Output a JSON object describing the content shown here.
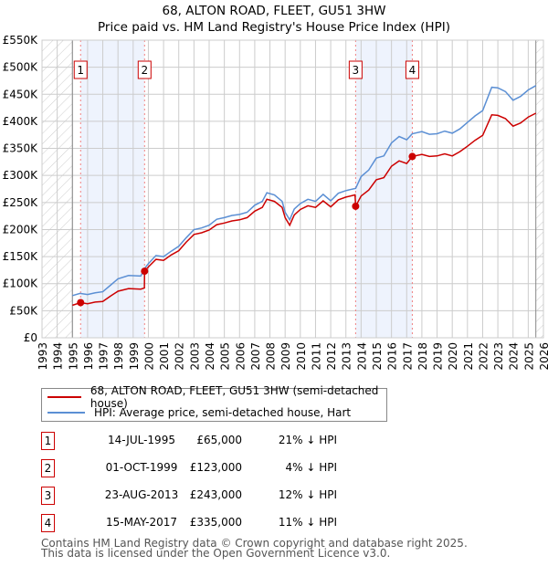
{
  "chart_data": {
    "type": "line",
    "title": "68, ALTON ROAD, FLEET, GU51 3HW",
    "subtitle": "Price paid vs. HM Land Registry's House Price Index (HPI)",
    "xlabel": "",
    "ylabel": "",
    "xlim": [
      1993,
      2026
    ],
    "ylim": [
      0,
      550000
    ],
    "grid": true,
    "x_ticks": [
      "1993",
      "1994",
      "1995",
      "1996",
      "1997",
      "1998",
      "1999",
      "2000",
      "2001",
      "2002",
      "2003",
      "2004",
      "2005",
      "2006",
      "2007",
      "2008",
      "2009",
      "2010",
      "2011",
      "2012",
      "2013",
      "2014",
      "2015",
      "2016",
      "2017",
      "2018",
      "2019",
      "2020",
      "2021",
      "2022",
      "2023",
      "2024",
      "2025",
      "2026"
    ],
    "y_ticks": [
      {
        "value": 0,
        "label": "£0"
      },
      {
        "value": 50000,
        "label": "£50K"
      },
      {
        "value": 100000,
        "label": "£100K"
      },
      {
        "value": 150000,
        "label": "£150K"
      },
      {
        "value": 200000,
        "label": "£200K"
      },
      {
        "value": 250000,
        "label": "£250K"
      },
      {
        "value": 300000,
        "label": "£300K"
      },
      {
        "value": 350000,
        "label": "£350K"
      },
      {
        "value": 400000,
        "label": "£400K"
      },
      {
        "value": 450000,
        "label": "£450K"
      },
      {
        "value": 500000,
        "label": "£500K"
      },
      {
        "value": 550000,
        "label": "£550K"
      }
    ],
    "hatched_ranges": [
      [
        1993,
        1995
      ],
      [
        2025.5,
        2026
      ]
    ],
    "shaded_ranges": [
      [
        1995.54,
        1999.75
      ],
      [
        2013.64,
        2017.37
      ]
    ],
    "series": [
      {
        "name": "68, ALTON ROAD, FLEET, GU51 3HW (semi-detached house)",
        "color": "#cc0000",
        "points": [
          [
            1995.0,
            60000
          ],
          [
            1995.54,
            65000
          ],
          [
            1996.0,
            63000
          ],
          [
            1996.5,
            66000
          ],
          [
            1997.0,
            67000
          ],
          [
            1997.5,
            77000
          ],
          [
            1998.0,
            86000
          ],
          [
            1998.7,
            91000
          ],
          [
            1999.5,
            90000
          ],
          [
            1999.74,
            92000
          ],
          [
            1999.75,
            123000
          ],
          [
            2000.0,
            131000
          ],
          [
            2000.5,
            145000
          ],
          [
            2001.0,
            143000
          ],
          [
            2001.5,
            153000
          ],
          [
            2002.0,
            161000
          ],
          [
            2002.5,
            177000
          ],
          [
            2003.0,
            191000
          ],
          [
            2003.5,
            194000
          ],
          [
            2004.0,
            199000
          ],
          [
            2004.5,
            209000
          ],
          [
            2005.0,
            212000
          ],
          [
            2005.5,
            216000
          ],
          [
            2006.0,
            218000
          ],
          [
            2006.5,
            222000
          ],
          [
            2007.0,
            234000
          ],
          [
            2007.5,
            241000
          ],
          [
            2007.8,
            256000
          ],
          [
            2008.3,
            252000
          ],
          [
            2008.8,
            241000
          ],
          [
            2009.0,
            222000
          ],
          [
            2009.3,
            208000
          ],
          [
            2009.6,
            227000
          ],
          [
            2010.0,
            237000
          ],
          [
            2010.5,
            244000
          ],
          [
            2011.0,
            241000
          ],
          [
            2011.5,
            253000
          ],
          [
            2012.0,
            242000
          ],
          [
            2012.5,
            255000
          ],
          [
            2013.0,
            260000
          ],
          [
            2013.6,
            264000
          ],
          [
            2013.64,
            243000
          ],
          [
            2014.0,
            262000
          ],
          [
            2014.5,
            273000
          ],
          [
            2015.0,
            292000
          ],
          [
            2015.5,
            296000
          ],
          [
            2016.0,
            317000
          ],
          [
            2016.5,
            327000
          ],
          [
            2017.0,
            322000
          ],
          [
            2017.37,
            335000
          ],
          [
            2018.0,
            339000
          ],
          [
            2018.5,
            335000
          ],
          [
            2019.0,
            336000
          ],
          [
            2019.5,
            340000
          ],
          [
            2020.0,
            336000
          ],
          [
            2020.5,
            344000
          ],
          [
            2021.0,
            354000
          ],
          [
            2021.5,
            365000
          ],
          [
            2022.0,
            374000
          ],
          [
            2022.6,
            412000
          ],
          [
            2023.0,
            411000
          ],
          [
            2023.5,
            405000
          ],
          [
            2024.0,
            391000
          ],
          [
            2024.5,
            397000
          ],
          [
            2025.0,
            408000
          ],
          [
            2025.5,
            415000
          ]
        ]
      },
      {
        "name": "HPI: Average price, semi-detached house, Hart",
        "color": "#5b8fd4",
        "points": [
          [
            1995.0,
            78000
          ],
          [
            1995.5,
            82000
          ],
          [
            1996.0,
            80000
          ],
          [
            1996.5,
            83000
          ],
          [
            1997.0,
            85000
          ],
          [
            1997.5,
            97000
          ],
          [
            1998.0,
            109000
          ],
          [
            1998.7,
            115000
          ],
          [
            1999.5,
            114000
          ],
          [
            1999.75,
            128000
          ],
          [
            2000.0,
            137000
          ],
          [
            2000.5,
            152000
          ],
          [
            2001.0,
            150000
          ],
          [
            2001.5,
            160000
          ],
          [
            2002.0,
            169000
          ],
          [
            2002.5,
            185000
          ],
          [
            2003.0,
            200000
          ],
          [
            2003.5,
            203000
          ],
          [
            2004.0,
            208000
          ],
          [
            2004.5,
            219000
          ],
          [
            2005.0,
            222000
          ],
          [
            2005.5,
            226000
          ],
          [
            2006.0,
            228000
          ],
          [
            2006.5,
            232000
          ],
          [
            2007.0,
            245000
          ],
          [
            2007.5,
            252000
          ],
          [
            2007.8,
            268000
          ],
          [
            2008.3,
            264000
          ],
          [
            2008.8,
            252000
          ],
          [
            2009.0,
            232000
          ],
          [
            2009.3,
            218000
          ],
          [
            2009.6,
            238000
          ],
          [
            2010.0,
            248000
          ],
          [
            2010.5,
            256000
          ],
          [
            2011.0,
            252000
          ],
          [
            2011.5,
            265000
          ],
          [
            2012.0,
            253000
          ],
          [
            2012.5,
            267000
          ],
          [
            2013.0,
            272000
          ],
          [
            2013.64,
            276000
          ],
          [
            2014.0,
            298000
          ],
          [
            2014.5,
            310000
          ],
          [
            2015.0,
            332000
          ],
          [
            2015.5,
            336000
          ],
          [
            2016.0,
            360000
          ],
          [
            2016.5,
            372000
          ],
          [
            2017.0,
            366000
          ],
          [
            2017.37,
            377000
          ],
          [
            2018.0,
            381000
          ],
          [
            2018.5,
            376000
          ],
          [
            2019.0,
            377000
          ],
          [
            2019.5,
            382000
          ],
          [
            2020.0,
            378000
          ],
          [
            2020.5,
            386000
          ],
          [
            2021.0,
            398000
          ],
          [
            2021.5,
            410000
          ],
          [
            2022.0,
            420000
          ],
          [
            2022.6,
            463000
          ],
          [
            2023.0,
            462000
          ],
          [
            2023.5,
            455000
          ],
          [
            2024.0,
            439000
          ],
          [
            2024.5,
            446000
          ],
          [
            2025.0,
            458000
          ],
          [
            2025.5,
            466000
          ]
        ]
      }
    ],
    "sales": [
      {
        "label": "1",
        "x": 1995.54,
        "value": 65000,
        "date": "14-JUL-1995",
        "price": "£65,000",
        "hpi": "21% ↓ HPI"
      },
      {
        "label": "2",
        "x": 1999.75,
        "value": 123000,
        "date": "01-OCT-1999",
        "price": "£123,000",
        "hpi": "4% ↓ HPI"
      },
      {
        "label": "3",
        "x": 2013.64,
        "value": 243000,
        "date": "23-AUG-2013",
        "price": "£243,000",
        "hpi": "12% ↓ HPI"
      },
      {
        "label": "4",
        "x": 2017.37,
        "value": 335000,
        "date": "15-MAY-2017",
        "price": "£335,000",
        "hpi": "11% ↓ HPI"
      }
    ]
  },
  "footer": {
    "line1": "Contains HM Land Registry data © Crown copyright and database right 2025.",
    "line2": "This data is licensed under the Open Government Licence v3.0."
  }
}
